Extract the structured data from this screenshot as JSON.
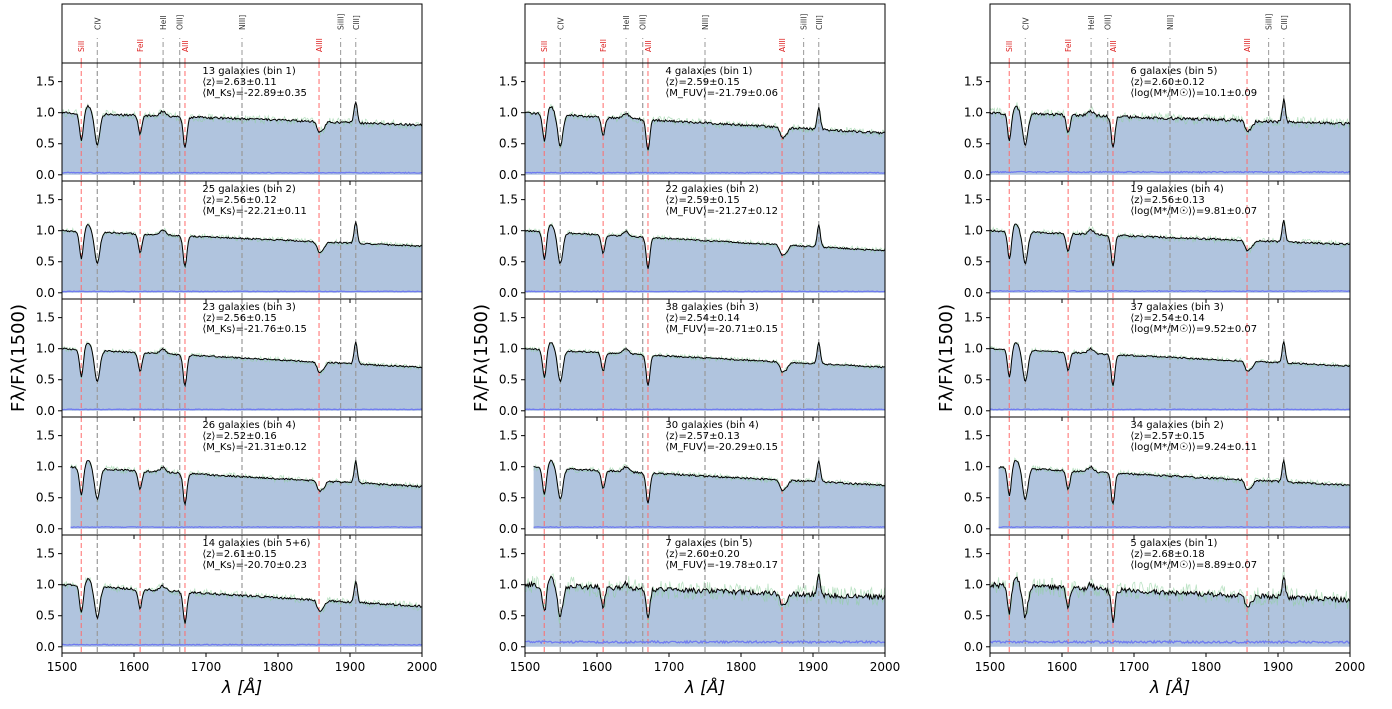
{
  "chart_data": {
    "type": "line",
    "xlim": [
      1500,
      2000
    ],
    "ylim": [
      -0.1,
      1.8
    ],
    "x_ticks": [
      1500,
      1600,
      1700,
      1800,
      1900,
      2000
    ],
    "y_ticks": [
      0.0,
      0.5,
      1.0,
      1.5
    ],
    "y_tick_labels": [
      "0.0",
      "0.5",
      "1.0",
      "1.5"
    ],
    "xlabel": "λ [Å]",
    "ylabel": "Fλ/Fλ(1500)",
    "colors": {
      "fill": "#b0c4de",
      "spectrum": "#000000",
      "noisy": "#8fd19e",
      "error": "#6f7bf0",
      "emission_line": "#999999",
      "absorption_line": "#ff6b6b",
      "absorption_label": "#dd2222"
    },
    "line_markers": [
      {
        "name": "SiII",
        "wave": 1526.7,
        "kind": "absorption"
      },
      {
        "name": "CIV",
        "wave": 1549.0,
        "kind": "emission"
      },
      {
        "name": "FeII",
        "wave": 1608.5,
        "kind": "absorption"
      },
      {
        "name": "HeII",
        "wave": 1640.4,
        "kind": "emission"
      },
      {
        "name": "OIII]",
        "wave": 1663.5,
        "kind": "emission"
      },
      {
        "name": "AlII",
        "wave": 1670.8,
        "kind": "absorption"
      },
      {
        "name": "NIII]",
        "wave": 1750.0,
        "kind": "emission"
      },
      {
        "name": "AlIII",
        "wave": 1857.0,
        "kind": "absorption"
      },
      {
        "name": "SiIII]",
        "wave": 1887.0,
        "kind": "emission"
      },
      {
        "name": "CIII]",
        "wave": 1908.0,
        "kind": "emission"
      }
    ],
    "columns": [
      {
        "panels": [
          {
            "line1": "13 galaxies (bin 1)",
            "line2": "⟨z⟩=2.63±0.11",
            "line3": "⟨M_Ks⟩=-22.89±0.35",
            "continuum_start": 1500,
            "continuum_end": 1000,
            "noise": 0.03
          },
          {
            "line1": "25 galaxies (bin 2)",
            "line2": "⟨z⟩=2.56±0.12",
            "line3": "⟨M_Ks⟩=-22.21±0.11",
            "continuum_start": 1500,
            "continuum_end": 0.75,
            "noise": 0.02
          },
          {
            "line1": "23 galaxies (bin 3)",
            "line2": "⟨z⟩=2.56±0.15",
            "line3": "⟨M_Ks⟩=-21.76±0.15",
            "continuum_start": 1500,
            "continuum_end": 0.7,
            "noise": 0.02
          },
          {
            "line1": "26 galaxies (bin 4)",
            "line2": "⟨z⟩=2.52±0.16",
            "line3": "⟨M_Ks⟩=-21.31±0.12",
            "continuum_start": 1512,
            "continuum_end": 0.68,
            "noise": 0.025
          },
          {
            "line1": "14 galaxies (bin 5+6)",
            "line2": "⟨z⟩=2.61±0.15",
            "line3": "⟨M_Ks⟩=-20.70±0.23",
            "continuum_start": 1500,
            "continuum_end": 0.65,
            "noise": 0.03
          }
        ]
      },
      {
        "panels": [
          {
            "line1": "4 galaxies (bin 1)",
            "line2": "⟨z⟩=2.59±0.15",
            "line3": "⟨M_FUV⟩=-21.79±0.06",
            "continuum_start": 1500,
            "continuum_end": 0.67,
            "noise": 0.03
          },
          {
            "line1": "22 galaxies (bin 2)",
            "line2": "⟨z⟩=2.59±0.15",
            "line3": "⟨M_FUV⟩=-21.27±0.12",
            "continuum_start": 1500,
            "continuum_end": 0.68,
            "noise": 0.02
          },
          {
            "line1": "38 galaxies (bin 3)",
            "line2": "⟨z⟩=2.54±0.14",
            "line3": "⟨M_FUV⟩=-20.71±0.15",
            "continuum_start": 1500,
            "continuum_end": 0.7,
            "noise": 0.02
          },
          {
            "line1": "30 galaxies (bin 4)",
            "line2": "⟨z⟩=2.57±0.13",
            "line3": "⟨M_FUV⟩=-20.29±0.15",
            "continuum_start": 1512,
            "continuum_end": 0.7,
            "noise": 0.025
          },
          {
            "line1": "7 galaxies (bin 5)",
            "line2": "⟨z⟩=2.60±0.20",
            "line3": "⟨M_FUV⟩=-19.78±0.17",
            "continuum_start": 1500,
            "continuum_end": 0.8,
            "noise": 0.07
          }
        ]
      },
      {
        "panels": [
          {
            "line1": "6 galaxies (bin 5)",
            "line2": "⟨z⟩=2.60±0.12",
            "line3": "⟨log(M*/M☉)⟩=10.1±0.09",
            "continuum_start": 1500,
            "continuum_end": 0.82,
            "noise": 0.04
          },
          {
            "line1": "19 galaxies (bin 4)",
            "line2": "⟨z⟩=2.56±0.13",
            "line3": "⟨log(M*/M☉)⟩=9.81±0.07",
            "continuum_start": 1500,
            "continuum_end": 0.78,
            "noise": 0.025
          },
          {
            "line1": "37 galaxies (bin 3)",
            "line2": "⟨z⟩=2.54±0.14",
            "line3": "⟨log(M*/M☉)⟩=9.52±0.07",
            "continuum_start": 1500,
            "continuum_end": 0.72,
            "noise": 0.02
          },
          {
            "line1": "34 galaxies (bin 2)",
            "line2": "⟨z⟩=2.57±0.15",
            "line3": "⟨log(M*/M☉)⟩=9.24±0.11",
            "continuum_start": 1512,
            "continuum_end": 0.7,
            "noise": 0.025
          },
          {
            "line1": "5 galaxies (bin 1)",
            "line2": "⟨z⟩=2.68±0.18",
            "line3": "⟨log(M*/M☉)⟩=8.89±0.07",
            "continuum_start": 1500,
            "continuum_end": 0.75,
            "noise": 0.07
          }
        ]
      }
    ]
  }
}
